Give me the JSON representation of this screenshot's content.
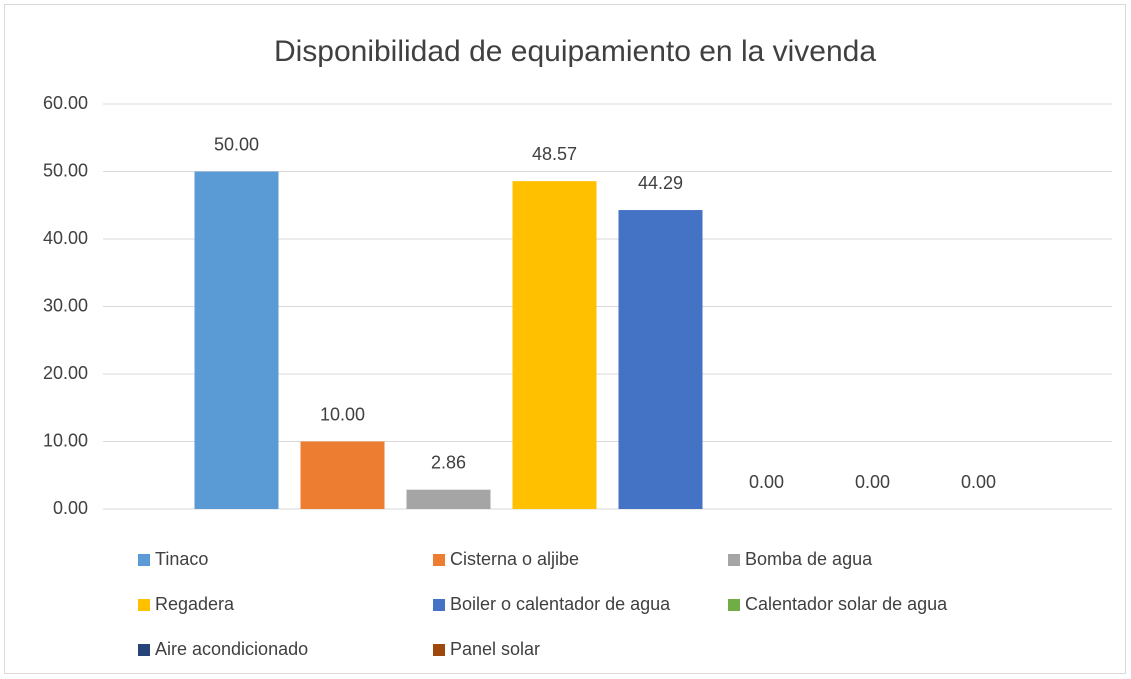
{
  "chart_data": {
    "type": "bar",
    "title": "Disponibilidad de equipamiento en la vivenda",
    "categories": [
      null
    ],
    "series": [
      {
        "name": "Tinaco",
        "color": "#5b9bd5",
        "values": [
          50
        ],
        "value_labels": [
          "50.00"
        ]
      },
      {
        "name": "Cisterna o aljibe",
        "color": "#ed7d31",
        "values": [
          10
        ],
        "value_labels": [
          "10.00"
        ]
      },
      {
        "name": "Bomba de agua",
        "color": "#a5a5a5",
        "values": [
          2.86
        ],
        "value_labels": [
          "2.86"
        ]
      },
      {
        "name": "Regadera",
        "color": "#ffc000",
        "values": [
          48.57
        ],
        "value_labels": [
          "48.57"
        ]
      },
      {
        "name": "Boiler o calentador de agua",
        "color": "#4472c4",
        "values": [
          44.29
        ],
        "value_labels": [
          "44.29"
        ]
      },
      {
        "name": "Calentador solar de agua",
        "color": "#70ad47",
        "values": [
          0
        ],
        "value_labels": [
          "0.00"
        ]
      },
      {
        "name": "Aire acondicionado",
        "color": "#264478",
        "values": [
          0
        ],
        "value_labels": [
          "0.00"
        ]
      },
      {
        "name": "Panel solar",
        "color": "#9e480e",
        "values": [
          0
        ],
        "value_labels": [
          "0.00"
        ]
      }
    ],
    "ylim": [
      0,
      60
    ],
    "yticks": [
      {
        "value": 0,
        "label": "0.00"
      },
      {
        "value": 10,
        "label": "10.00"
      },
      {
        "value": 20,
        "label": "20.00"
      },
      {
        "value": 30,
        "label": "30.00"
      },
      {
        "value": 40,
        "label": "40.00"
      },
      {
        "value": 50,
        "label": "50.00"
      },
      {
        "value": 60,
        "label": "60.00"
      }
    ],
    "grid": true,
    "legend": "bottom"
  }
}
